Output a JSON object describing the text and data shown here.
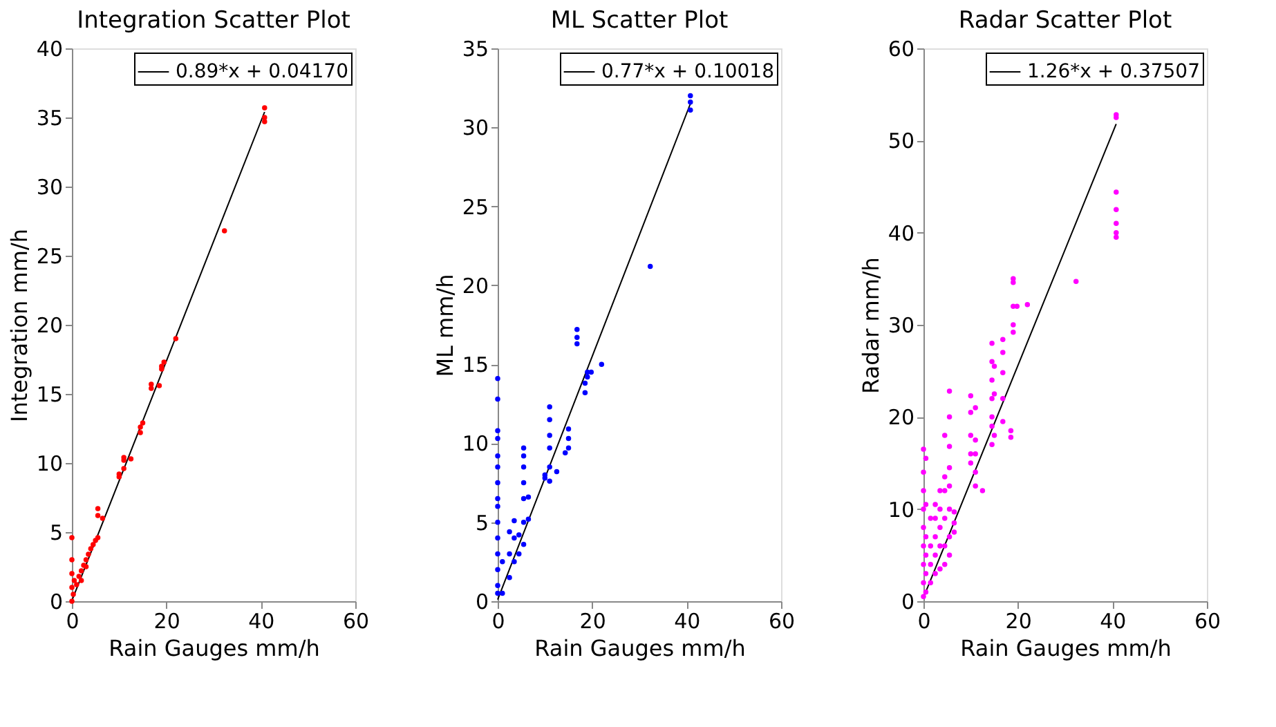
{
  "chart_data": [
    {
      "type": "scatter",
      "title": "Integration Scatter Plot",
      "xlabel": "Rain Gauges mm/h",
      "ylabel": "Integration mm/h",
      "xlim": [
        0,
        60
      ],
      "xticks": [
        0,
        20,
        40,
        60
      ],
      "ylim": [
        0,
        40
      ],
      "yticks": [
        0,
        5,
        10,
        15,
        20,
        25,
        30,
        35,
        40
      ],
      "grid": false,
      "legend": "top right",
      "series": [
        {
          "marker": "circle",
          "color": "#ff0000",
          "x": [
            0,
            0,
            0,
            0,
            0,
            0.3,
            0.5,
            1,
            1.5,
            2,
            2,
            2.5,
            3,
            3,
            3.5,
            4,
            4.5,
            5,
            5.5,
            5.5,
            5.5,
            6.5,
            10,
            10,
            11,
            11,
            11,
            12.5,
            14.5,
            14.5,
            15,
            16.8,
            16.8,
            18.5,
            19,
            19,
            19.5,
            22,
            32.3,
            40.8,
            40.8,
            40.8
          ],
          "values": [
            0,
            1,
            2,
            3,
            4.6,
            0.5,
            1.5,
            1.2,
            1.8,
            1.5,
            2.2,
            2.6,
            2.5,
            3.0,
            3.4,
            3.8,
            4.1,
            4.4,
            4.6,
            6.2,
            6.7,
            6.0,
            9.0,
            9.2,
            9.6,
            10.2,
            10.4,
            10.3,
            12.2,
            12.6,
            12.9,
            15.4,
            15.7,
            15.6,
            16.8,
            17.0,
            17.3,
            19.0,
            26.8,
            34.7,
            35.0,
            35.7
          ]
        },
        {
          "type": "line",
          "name": "0.89*x + 0.04170",
          "color": "#000000",
          "x": [
            0,
            40.8
          ],
          "values": [
            0.04,
            35.4
          ]
        }
      ]
    },
    {
      "type": "scatter",
      "title": "ML Scatter Plot",
      "xlabel": "Rain Gauges mm/h",
      "ylabel": "ML mm/h",
      "xlim": [
        0,
        60
      ],
      "xticks": [
        0,
        20,
        40,
        60
      ],
      "ylim": [
        0,
        35
      ],
      "yticks": [
        0,
        5,
        10,
        15,
        20,
        25,
        30,
        35
      ],
      "grid": false,
      "legend": "top right",
      "series": [
        {
          "marker": "circle",
          "color": "#0000ff",
          "x": [
            0,
            0,
            0,
            0,
            0,
            0,
            0,
            0,
            0,
            0,
            0,
            0,
            0,
            0,
            0,
            1,
            1,
            2.5,
            2.5,
            2.5,
            3.5,
            3.5,
            3.5,
            4.5,
            4.5,
            5.5,
            5.5,
            5.5,
            5.5,
            5.5,
            5.5,
            5.5,
            6.5,
            6.5,
            10,
            10,
            11,
            11,
            11,
            11,
            11,
            11,
            12.5,
            14.3,
            15,
            15,
            15,
            16.8,
            16.8,
            16.8,
            18.5,
            18.5,
            19,
            19,
            19.8,
            22,
            32.3,
            40.8,
            40.8,
            40.8
          ],
          "values": [
            0.5,
            1,
            2,
            3,
            4,
            5,
            6,
            6.5,
            7.5,
            8.5,
            9.2,
            10.3,
            10.8,
            12.8,
            14.1,
            0.5,
            2.5,
            1.5,
            3,
            4.4,
            2.5,
            4,
            5.1,
            3,
            4.2,
            3.6,
            5,
            6.5,
            7.5,
            8.5,
            9.2,
            9.7,
            5.2,
            6.6,
            7.8,
            8.0,
            7.6,
            8.5,
            9.7,
            10.5,
            11.5,
            12.3,
            8.2,
            9.4,
            9.7,
            10.3,
            10.9,
            16.3,
            16.7,
            17.2,
            13.2,
            13.8,
            14.2,
            14.5,
            14.5,
            15,
            21.2,
            31.1,
            31.6,
            32
          ]
        },
        {
          "type": "line",
          "name": "0.77*x + 0.10018",
          "color": "#000000",
          "x": [
            0,
            40.8
          ],
          "values": [
            0.1,
            31.5
          ]
        }
      ]
    },
    {
      "type": "scatter",
      "title": "Radar Scatter Plot",
      "xlabel": "Rain Gauges mm/h",
      "ylabel": "Radar mm/h",
      "xlim": [
        0,
        60
      ],
      "xticks": [
        0,
        20,
        40,
        60
      ],
      "ylim": [
        0,
        60
      ],
      "yticks": [
        0,
        10,
        20,
        30,
        40,
        50,
        60
      ],
      "grid": false,
      "legend": "top right",
      "series": [
        {
          "marker": "circle",
          "color": "#ff00ff",
          "x": [
            0,
            0,
            0,
            0,
            0,
            0,
            0,
            0,
            0,
            0.5,
            0.5,
            0.5,
            0.5,
            0.5,
            0.5,
            1.5,
            1.5,
            1.5,
            1.5,
            2.5,
            2.5,
            2.5,
            2.5,
            2.5,
            3.5,
            3.5,
            3.5,
            3.5,
            3.5,
            4.5,
            4.5,
            4.5,
            4.5,
            4.5,
            4.5,
            5.5,
            5.5,
            5.5,
            5.5,
            5.5,
            5.5,
            5.5,
            5.5,
            6.5,
            6.5,
            6.5,
            10,
            10,
            10,
            10,
            10,
            11,
            11,
            11,
            11,
            11,
            12.5,
            14.5,
            14.5,
            14.5,
            14.5,
            14.5,
            14.5,
            14.5,
            15,
            15,
            15,
            16.8,
            16.8,
            16.8,
            16.8,
            16.8,
            18.5,
            18.5,
            19,
            19,
            19,
            19,
            19,
            19.8,
            22,
            32.3,
            40.8,
            40.8,
            40.8,
            40.8,
            40.8,
            40.8,
            40.8
          ],
          "values": [
            0.5,
            2,
            4,
            6,
            8,
            10,
            12,
            14,
            16.5,
            1,
            3,
            5,
            7,
            10.5,
            15.5,
            2,
            4,
            6,
            9,
            3,
            5,
            7,
            9,
            10.5,
            3.5,
            6,
            8,
            10,
            12,
            4,
            6,
            9,
            12,
            13.5,
            18,
            5,
            7,
            10,
            12.5,
            14.5,
            16.8,
            20,
            22.8,
            7.5,
            8.5,
            9.7,
            15,
            16,
            18,
            20.5,
            22.3,
            12.5,
            14,
            16,
            17.5,
            21,
            12,
            17,
            19,
            20,
            22,
            24,
            26,
            28,
            18,
            22.5,
            25.5,
            19.5,
            22,
            24.8,
            27,
            28.4,
            17.8,
            18.5,
            29.2,
            30,
            32,
            34.6,
            35,
            32,
            32.2,
            34.7,
            39.5,
            40,
            41,
            42.5,
            44.4,
            52.5,
            52.8
          ]
        },
        {
          "type": "line",
          "name": "1.26*x + 0.37507",
          "color": "#000000",
          "x": [
            0,
            40.8
          ],
          "values": [
            0.4,
            51.8
          ]
        }
      ]
    }
  ]
}
